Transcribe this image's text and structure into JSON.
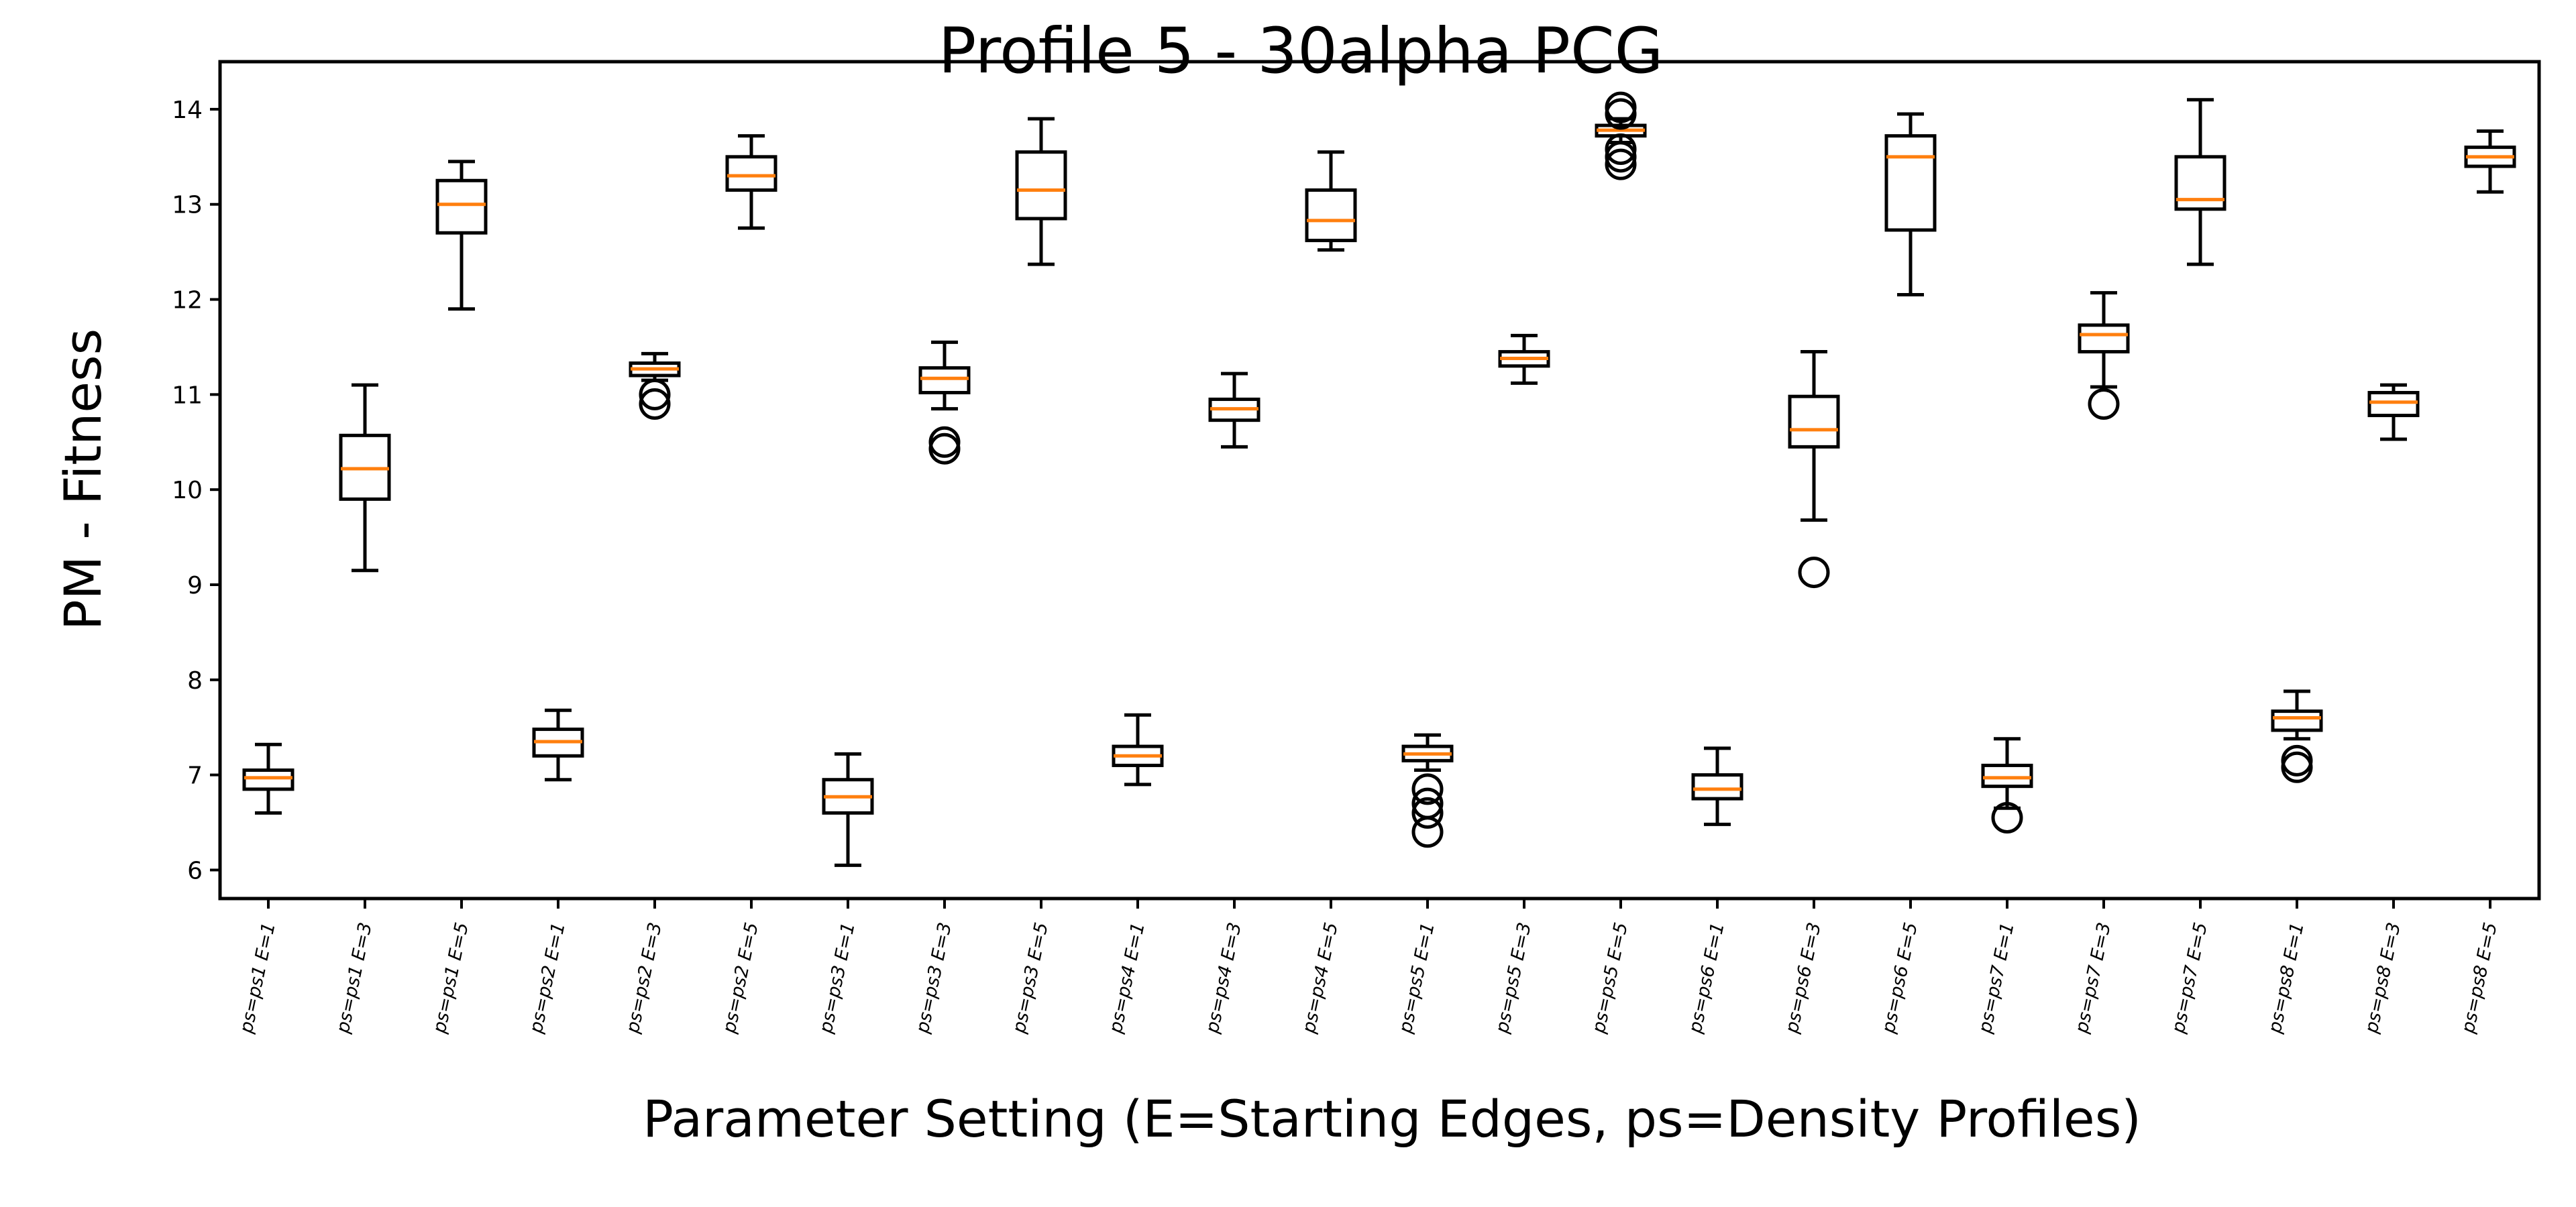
{
  "chart_data": {
    "type": "box",
    "title": "Profile 5 - 30alpha PCG",
    "xlabel": "Parameter Setting (E=Starting Edges, ps=Density Profiles)",
    "ylabel": "PM - Fitness",
    "ylim": [
      5.7,
      14.5
    ],
    "yticks": [
      6,
      7,
      8,
      9,
      10,
      11,
      12,
      13,
      14
    ],
    "grid": false,
    "categories": [
      "ps=ps1 E=1",
      "ps=ps1 E=3",
      "ps=ps1 E=5",
      "ps=ps2 E=1",
      "ps=ps2 E=3",
      "ps=ps2 E=5",
      "ps=ps3 E=1",
      "ps=ps3 E=3",
      "ps=ps3 E=5",
      "ps=ps4 E=1",
      "ps=ps4 E=3",
      "ps=ps4 E=5",
      "ps=ps5 E=1",
      "ps=ps5 E=3",
      "ps=ps5 E=5",
      "ps=ps6 E=1",
      "ps=ps6 E=3",
      "ps=ps6 E=5",
      "ps=ps7 E=1",
      "ps=ps7 E=3",
      "ps=ps7 E=5",
      "ps=ps8 E=1",
      "ps=ps8 E=3",
      "ps=ps8 E=5"
    ],
    "boxes": [
      {
        "min": 6.6,
        "q1": 6.85,
        "median": 6.97,
        "q3": 7.05,
        "max": 7.32,
        "outliers": []
      },
      {
        "min": 9.15,
        "q1": 9.9,
        "median": 10.22,
        "q3": 10.57,
        "max": 11.1,
        "outliers": []
      },
      {
        "min": 11.9,
        "q1": 12.7,
        "median": 13.0,
        "q3": 13.25,
        "max": 13.45,
        "outliers": []
      },
      {
        "min": 6.95,
        "q1": 7.2,
        "median": 7.35,
        "q3": 7.48,
        "max": 7.68,
        "outliers": []
      },
      {
        "min": 11.15,
        "q1": 11.2,
        "median": 11.27,
        "q3": 11.33,
        "max": 11.43,
        "outliers": [
          10.9,
          11.0
        ]
      },
      {
        "min": 12.75,
        "q1": 13.15,
        "median": 13.3,
        "q3": 13.5,
        "max": 13.72,
        "outliers": []
      },
      {
        "min": 6.05,
        "q1": 6.6,
        "median": 6.77,
        "q3": 6.95,
        "max": 7.22,
        "outliers": []
      },
      {
        "min": 10.85,
        "q1": 11.02,
        "median": 11.17,
        "q3": 11.28,
        "max": 11.55,
        "outliers": [
          10.43,
          10.5
        ]
      },
      {
        "min": 12.37,
        "q1": 12.85,
        "median": 13.15,
        "q3": 13.55,
        "max": 13.9,
        "outliers": []
      },
      {
        "min": 6.9,
        "q1": 7.1,
        "median": 7.2,
        "q3": 7.3,
        "max": 7.63,
        "outliers": []
      },
      {
        "min": 10.45,
        "q1": 10.73,
        "median": 10.85,
        "q3": 10.95,
        "max": 11.22,
        "outliers": []
      },
      {
        "min": 12.52,
        "q1": 12.62,
        "median": 12.83,
        "q3": 13.15,
        "max": 13.55,
        "outliers": []
      },
      {
        "min": 7.05,
        "q1": 7.15,
        "median": 7.22,
        "q3": 7.3,
        "max": 7.42,
        "outliers": [
          6.4,
          6.6,
          6.7,
          6.85
        ]
      },
      {
        "min": 11.12,
        "q1": 11.3,
        "median": 11.38,
        "q3": 11.45,
        "max": 11.62,
        "outliers": []
      },
      {
        "min": 13.65,
        "q1": 13.72,
        "median": 13.78,
        "q3": 13.83,
        "max": 13.9,
        "outliers": [
          13.42,
          13.5,
          13.58,
          13.95,
          14.02
        ]
      },
      {
        "min": 6.48,
        "q1": 6.75,
        "median": 6.85,
        "q3": 7.0,
        "max": 7.28,
        "outliers": []
      },
      {
        "min": 9.68,
        "q1": 10.45,
        "median": 10.63,
        "q3": 10.98,
        "max": 11.45,
        "outliers": [
          9.13
        ]
      },
      {
        "min": 12.05,
        "q1": 12.73,
        "median": 13.5,
        "q3": 13.72,
        "max": 13.95,
        "outliers": []
      },
      {
        "min": 6.65,
        "q1": 6.88,
        "median": 6.97,
        "q3": 7.1,
        "max": 7.38,
        "outliers": [
          6.55
        ]
      },
      {
        "min": 11.08,
        "q1": 11.45,
        "median": 11.63,
        "q3": 11.73,
        "max": 12.07,
        "outliers": [
          10.9
        ]
      },
      {
        "min": 12.37,
        "q1": 12.95,
        "median": 13.05,
        "q3": 13.5,
        "max": 14.1,
        "outliers": []
      },
      {
        "min": 7.38,
        "q1": 7.47,
        "median": 7.6,
        "q3": 7.67,
        "max": 7.88,
        "outliers": [
          7.08,
          7.15
        ]
      },
      {
        "min": 10.53,
        "q1": 10.78,
        "median": 10.92,
        "q3": 11.02,
        "max": 11.1,
        "outliers": []
      },
      {
        "min": 13.13,
        "q1": 13.4,
        "median": 13.5,
        "q3": 13.6,
        "max": 13.77,
        "outliers": []
      }
    ],
    "colors": {
      "box": "#000000",
      "median": "#ff7f0e"
    }
  }
}
